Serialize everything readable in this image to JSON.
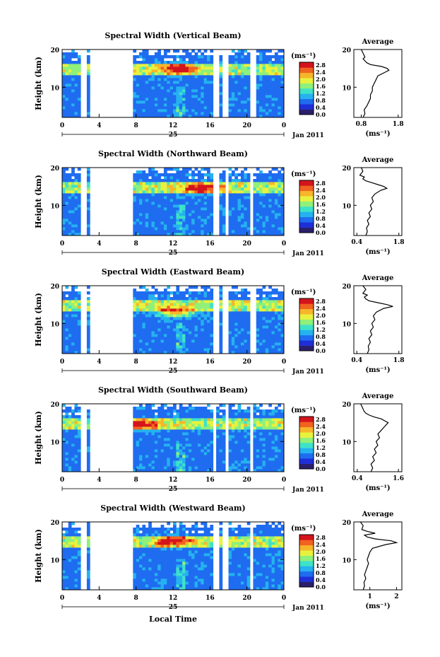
{
  "figure": {
    "xlabel_bottom": "Local Time",
    "date_label": "Jan 2011",
    "day_label": "25"
  },
  "colorbar": {
    "unit": "(ms⁻¹)",
    "ticks": [
      "2.8",
      "2.4",
      "2.0",
      "1.6",
      "1.2",
      "0.8",
      "0.4",
      "0.0"
    ],
    "colors": [
      "#2a1f6b",
      "#1f2fd8",
      "#1f6cf0",
      "#25b2ef",
      "#3ee2c8",
      "#8ff07a",
      "#e8f23e",
      "#f7b62a",
      "#f16320",
      "#d4141c"
    ]
  },
  "chart_data": [
    {
      "type": "heatmap",
      "title": "Spectral Width (Vertical Beam)",
      "ylabel": "Height (km)",
      "x_ticks": [
        "0",
        "4",
        "8",
        "12",
        "16",
        "20",
        "0"
      ],
      "y_ticks": [
        "20",
        "10"
      ],
      "xlim": [
        0,
        24
      ],
      "ylim": [
        2,
        20
      ],
      "gaps_hours": [
        [
          2.1,
          2.5
        ],
        [
          3.0,
          7.5
        ],
        [
          16.5,
          16.9
        ],
        [
          17.5,
          17.9
        ],
        [
          20.5,
          20.9
        ]
      ],
      "hotspot": {
        "height_km": 15,
        "time_h": 12.5
      },
      "average": {
        "title": "Average",
        "xlabel": "(ms⁻¹)",
        "x_ticks": [
          "0.8",
          "1.8"
        ],
        "y_ticks": [
          "20",
          "10"
        ],
        "xlim": [
          0.6,
          1.9
        ],
        "heights_km": [
          2,
          3,
          4,
          5,
          6,
          7,
          8,
          9,
          10,
          11,
          12,
          13,
          14,
          14.5,
          15,
          15.5,
          16,
          16.5,
          17,
          17.5,
          18,
          19,
          20
        ],
        "values": [
          0.85,
          0.9,
          0.88,
          0.95,
          1.0,
          1.05,
          1.05,
          1.1,
          1.1,
          1.15,
          1.2,
          1.25,
          1.45,
          1.55,
          1.5,
          1.35,
          1.05,
          0.95,
          0.9,
          0.85,
          0.9,
          0.85,
          0.8
        ]
      }
    },
    {
      "type": "heatmap",
      "title": "Spectral Width (Northward Beam)",
      "ylabel": "Height (km)",
      "x_ticks": [
        "0",
        "4",
        "8",
        "12",
        "16",
        "20",
        "0"
      ],
      "y_ticks": [
        "20",
        "10"
      ],
      "xlim": [
        0,
        24
      ],
      "ylim": [
        2,
        20
      ],
      "gaps_hours": [
        [
          2.1,
          2.5
        ],
        [
          3.0,
          7.5
        ],
        [
          16.5,
          16.9
        ],
        [
          17.6,
          18.0
        ],
        [
          20.4,
          20.8
        ]
      ],
      "hotspot": {
        "height_km": 14.5,
        "time_h": 15
      },
      "average": {
        "title": "Average",
        "xlabel": "(ms⁻¹)",
        "x_ticks": [
          "0.4",
          "1.8"
        ],
        "y_ticks": [
          "20",
          "10"
        ],
        "xlim": [
          0.3,
          1.9
        ],
        "heights_km": [
          2,
          3,
          4,
          5,
          6,
          7,
          8,
          9,
          10,
          11,
          12,
          13,
          14,
          14.5,
          15,
          15.5,
          16,
          16.5,
          17,
          17.5,
          18,
          19,
          20
        ],
        "values": [
          0.7,
          0.75,
          0.72,
          0.8,
          0.75,
          0.85,
          0.8,
          0.9,
          0.85,
          0.95,
          0.9,
          1.0,
          1.2,
          1.4,
          1.3,
          1.1,
          0.9,
          0.7,
          0.6,
          0.65,
          0.5,
          0.6,
          0.55
        ]
      }
    },
    {
      "type": "heatmap",
      "title": "Spectral Width (Eastward Beam)",
      "ylabel": "Height (km)",
      "x_ticks": [
        "0",
        "4",
        "8",
        "12",
        "16",
        "20",
        "0"
      ],
      "y_ticks": [
        "20",
        "10"
      ],
      "xlim": [
        0,
        24
      ],
      "ylim": [
        2,
        20
      ],
      "gaps_hours": [
        [
          2.1,
          2.5
        ],
        [
          3.0,
          7.5
        ],
        [
          16.5,
          16.9
        ],
        [
          17.5,
          17.9
        ],
        [
          20.5,
          20.9
        ]
      ],
      "hotspot": {
        "height_km": 13,
        "time_h": 12.3
      },
      "average": {
        "title": "Average",
        "xlabel": "(ms⁻¹)",
        "x_ticks": [
          "0.4",
          "1.8"
        ],
        "y_ticks": [
          "20",
          "10"
        ],
        "xlim": [
          0.3,
          1.9
        ],
        "heights_km": [
          2,
          3,
          4,
          5,
          6,
          7,
          8,
          9,
          10,
          11,
          12,
          13,
          14,
          14.5,
          15,
          15.5,
          16,
          16.5,
          17,
          17.5,
          18,
          19,
          20
        ],
        "values": [
          0.75,
          0.8,
          0.78,
          0.85,
          0.8,
          0.9,
          0.85,
          0.95,
          0.9,
          1.0,
          0.95,
          1.05,
          1.3,
          1.6,
          1.4,
          1.1,
          0.8,
          0.7,
          0.65,
          0.75,
          0.6,
          0.7,
          0.6
        ]
      }
    },
    {
      "type": "heatmap",
      "title": "Spectral Width (Southward Beam)",
      "ylabel": "Height (km)",
      "x_ticks": [
        "0",
        "4",
        "8",
        "12",
        "16",
        "20",
        "0"
      ],
      "y_ticks": [
        "20",
        "10"
      ],
      "xlim": [
        0,
        24
      ],
      "ylim": [
        2,
        20
      ],
      "gaps_hours": [
        [
          2.1,
          2.5
        ],
        [
          3.0,
          7.5
        ],
        [
          16.3,
          16.7
        ],
        [
          17.6,
          18.0
        ],
        [
          20.4,
          20.8
        ]
      ],
      "hotspot": {
        "height_km": 14.5,
        "time_h": 8.5
      },
      "average": {
        "title": "Average",
        "xlabel": "(ms⁻¹)",
        "x_ticks": [
          "0.4",
          "1.6"
        ],
        "y_ticks": [
          "20",
          "10"
        ],
        "xlim": [
          0.3,
          1.7
        ],
        "heights_km": [
          2,
          3,
          4,
          5,
          6,
          7,
          8,
          9,
          10,
          11,
          12,
          13,
          14,
          14.5,
          15,
          15.5,
          16,
          16.5,
          17,
          17.5,
          18,
          19,
          20
        ],
        "values": [
          0.8,
          0.85,
          0.8,
          0.9,
          0.85,
          0.95,
          0.9,
          1.0,
          0.95,
          1.05,
          1.0,
          1.1,
          1.2,
          1.25,
          1.3,
          1.2,
          1.1,
          0.9,
          0.75,
          0.65,
          0.6,
          0.55,
          0.5
        ]
      }
    },
    {
      "type": "heatmap",
      "title": "Spectral Width (Westward Beam)",
      "ylabel": "Height (km)",
      "x_ticks": [
        "0",
        "4",
        "8",
        "12",
        "16",
        "20",
        "0"
      ],
      "y_ticks": [
        "20",
        "10"
      ],
      "xlim": [
        0,
        24
      ],
      "ylim": [
        2,
        20
      ],
      "gaps_hours": [
        [
          2.1,
          2.5
        ],
        [
          3.0,
          7.5
        ],
        [
          16.5,
          16.9
        ],
        [
          17.5,
          17.9
        ],
        [
          20.4,
          20.8
        ]
      ],
      "hotspot": {
        "height_km": 15,
        "time_h": 12
      },
      "average": {
        "title": "Average",
        "xlabel": "(ms⁻¹)",
        "x_ticks": [
          "1",
          "2"
        ],
        "y_ticks": [
          "20",
          "10"
        ],
        "xlim": [
          0.4,
          2.2
        ],
        "heights_km": [
          2,
          3,
          4,
          5,
          6,
          7,
          8,
          9,
          10,
          11,
          12,
          13,
          14,
          14.5,
          15,
          15.5,
          16,
          16.5,
          17,
          17.5,
          18,
          19,
          20
        ],
        "values": [
          0.75,
          0.8,
          0.78,
          0.85,
          0.8,
          0.85,
          0.9,
          0.95,
          0.9,
          0.95,
          1.0,
          1.1,
          1.6,
          2.0,
          1.8,
          1.2,
          0.9,
          0.8,
          1.2,
          0.9,
          0.7,
          0.75,
          0.65
        ]
      }
    }
  ]
}
